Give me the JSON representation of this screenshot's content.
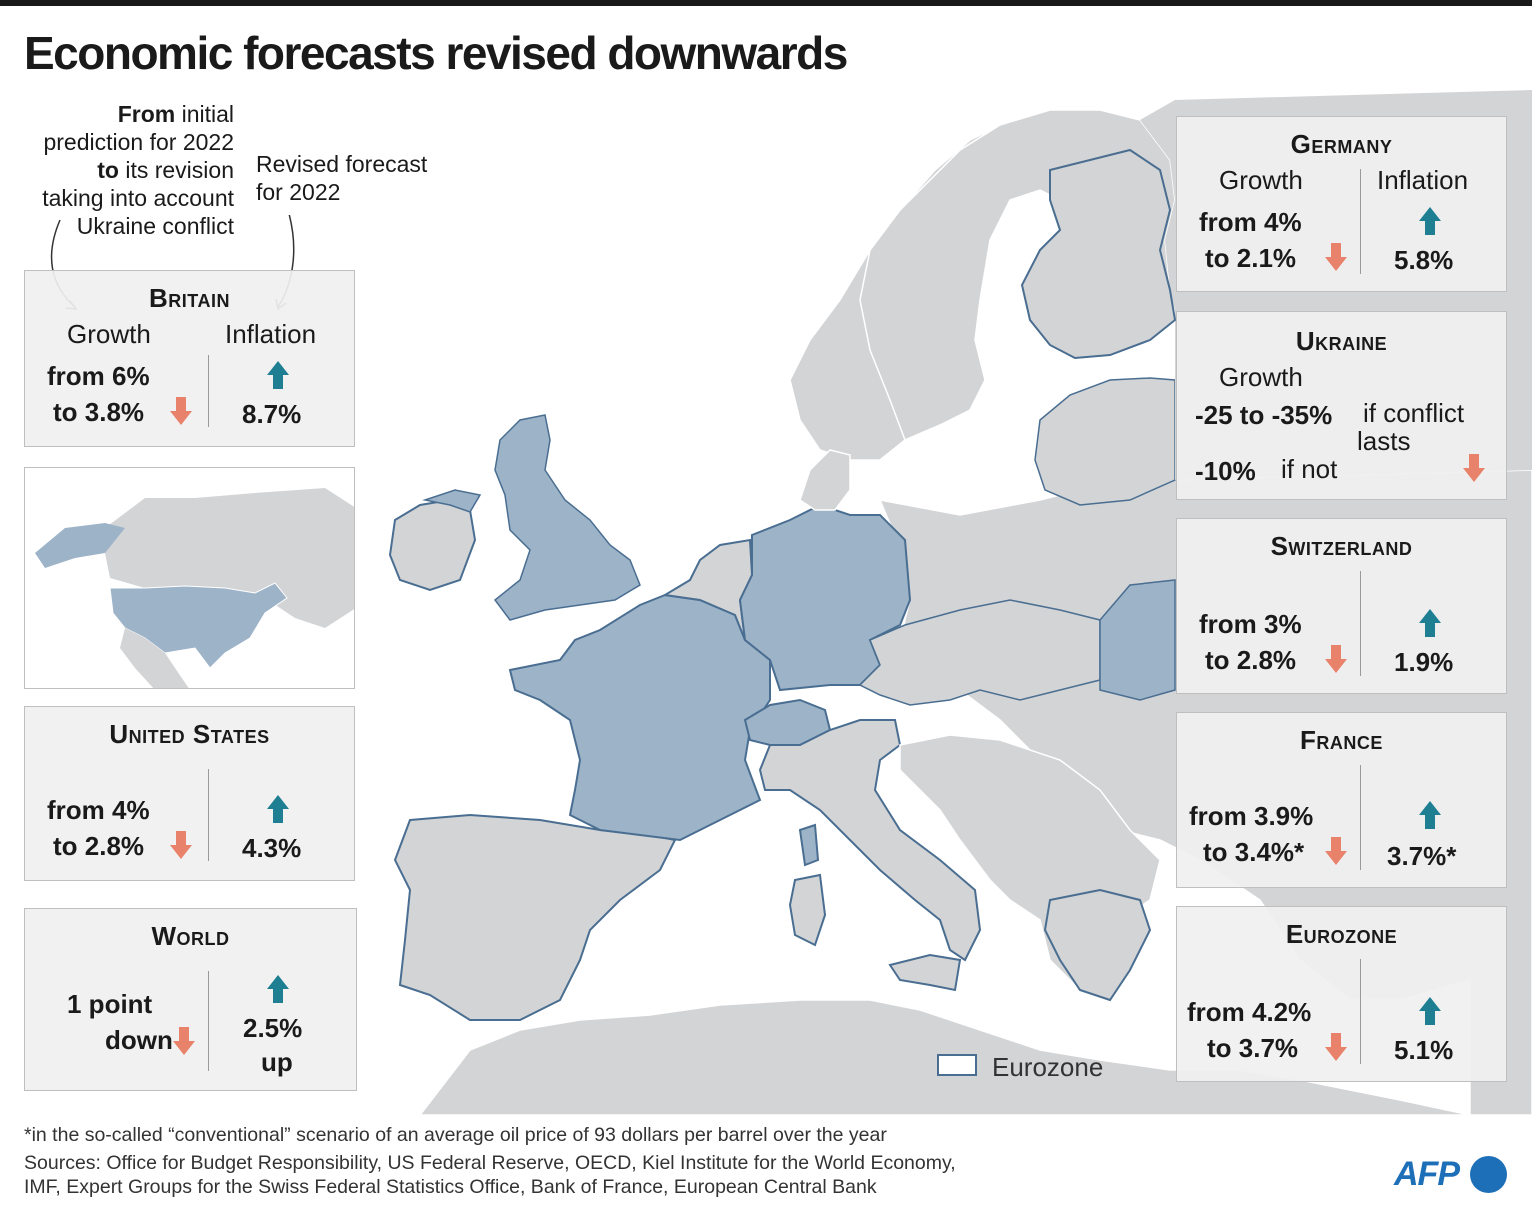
{
  "title": "Economic forecasts revised downwards",
  "notes": {
    "left_from": "From",
    "left_mid1": " initial prediction for 2022 ",
    "left_to": "to",
    "left_mid2": " its revision taking into account Ukraine conflict",
    "right": "Revised forecast for 2022"
  },
  "labels": {
    "growth": "Growth",
    "inflation": "Inflation"
  },
  "boxes": {
    "britain": {
      "name": "Britain",
      "from": "from 6%",
      "to": "to 3.8%",
      "inflation": "8.7%"
    },
    "united_states": {
      "name": "United States",
      "from": "from 4%",
      "to": "to 2.8%",
      "inflation": "4.3%"
    },
    "world": {
      "name": "World",
      "growth1": "1 point",
      "growth2": "down",
      "inflation1": "2.5%",
      "inflation2": "up"
    },
    "germany": {
      "name": "Germany",
      "from": "from 4%",
      "to": "to 2.1%",
      "inflation": "5.8%"
    },
    "ukraine": {
      "name": "Ukraine",
      "line1_value": "-25 to -35%",
      "line1_text": "if conflict",
      "line1_text2": "lasts",
      "line2_value": "-10%",
      "line2_text": "if not"
    },
    "switzerland": {
      "name": "Switzerland",
      "from": "from 3%",
      "to": "to 2.8%",
      "inflation": "1.9%"
    },
    "france": {
      "name": "France",
      "from": "from 3.9%",
      "to": "to 3.4%*",
      "inflation": "3.7%*"
    },
    "eurozone": {
      "name": "Eurozone",
      "from": "from 4.2%",
      "to": "to 3.7%",
      "inflation": "5.1%"
    }
  },
  "legend": {
    "label": "Eurozone"
  },
  "footer": {
    "line1": "*in the so-called “conventional” scenario of an average oil price of 93 dollars per barrel over the year",
    "line2": "Sources: Office for Budget Responsibility, US Federal Reserve, OECD, Kiel Institute for the World Economy,",
    "line3": "IMF, Expert Groups for the Swiss Federal Statistics Office, Bank of France, European Central Bank"
  },
  "logo": "AFP",
  "colors": {
    "land": "#d3d4d6",
    "highlight": "#9db3c8",
    "eurozone_border": "#4a6e91",
    "down": "#e8826a",
    "up": "#1e7f93",
    "sea": "#ffffff"
  }
}
